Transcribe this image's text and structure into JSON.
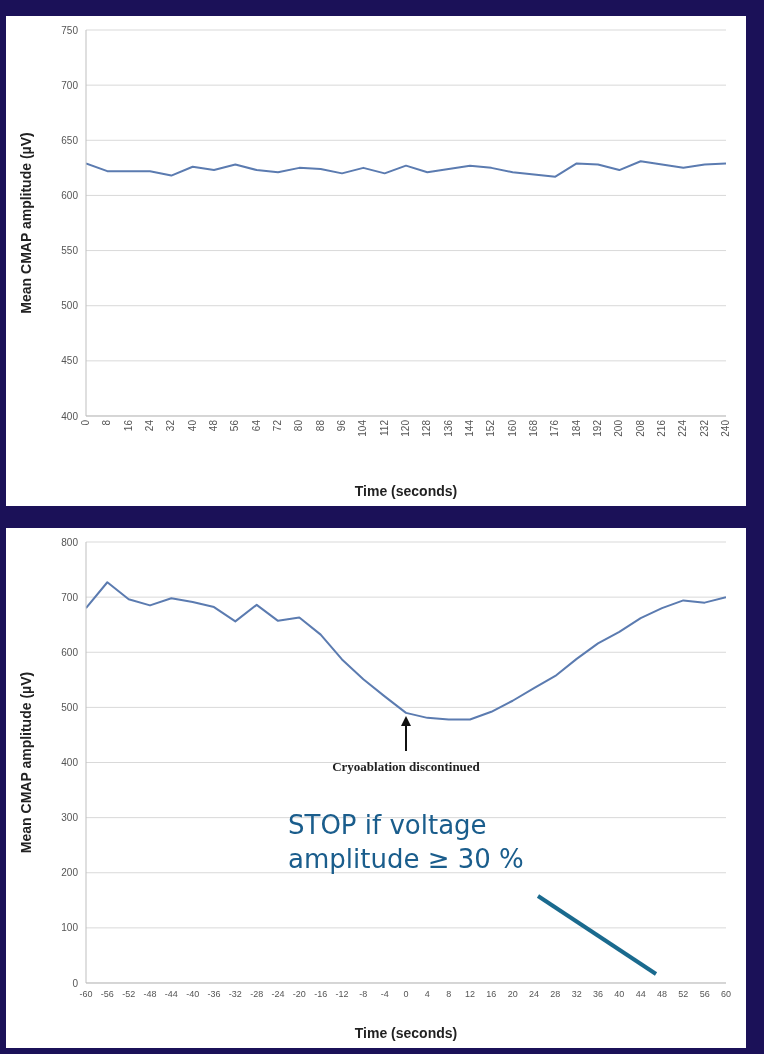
{
  "chart_data": [
    {
      "type": "line",
      "ylabel": "Mean CMAP amplitude (µV)",
      "xlabel": "Time (seconds)",
      "color": "#5b7bb0",
      "grid": "y",
      "marker": "none",
      "line_style": "solid",
      "x": [
        0,
        8,
        16,
        24,
        32,
        40,
        48,
        56,
        64,
        72,
        80,
        88,
        96,
        104,
        112,
        120,
        128,
        136,
        144,
        152,
        160,
        168,
        176,
        184,
        192,
        200,
        208,
        216,
        224,
        232,
        240
      ],
      "values": [
        629,
        622,
        622,
        622,
        618,
        626,
        623,
        628,
        623,
        621,
        625,
        624,
        620,
        625,
        620,
        627,
        621,
        624,
        627,
        625,
        621,
        619,
        617,
        629,
        628,
        623,
        631,
        628,
        625,
        628,
        629
      ],
      "xlim": [
        0,
        240
      ],
      "xticks": [
        0,
        8,
        16,
        24,
        32,
        40,
        48,
        56,
        64,
        72,
        80,
        88,
        96,
        104,
        112,
        120,
        128,
        136,
        144,
        152,
        160,
        168,
        176,
        184,
        192,
        200,
        208,
        216,
        224,
        232,
        240
      ],
      "ylim": [
        400,
        750
      ],
      "yticks": [
        400,
        450,
        500,
        550,
        600,
        650,
        700,
        750
      ]
    },
    {
      "type": "line",
      "ylabel": "Mean CMAP amplitude (µV)",
      "xlabel": "Time (seconds)",
      "color": "#5b7bb0",
      "grid": "y",
      "marker": "none",
      "line_style": "solid",
      "x": [
        -60,
        -56,
        -52,
        -48,
        -44,
        -40,
        -36,
        -32,
        -28,
        -24,
        -20,
        -16,
        -12,
        -8,
        -4,
        0,
        4,
        8,
        12,
        16,
        20,
        24,
        28,
        32,
        36,
        40,
        44,
        48,
        52,
        56,
        60
      ],
      "values": [
        680,
        727,
        696,
        685,
        698,
        691,
        682,
        656,
        686,
        657,
        663,
        632,
        587,
        551,
        520,
        490,
        481,
        478,
        478,
        492,
        512,
        535,
        557,
        588,
        616,
        637,
        662,
        680,
        694,
        690,
        700
      ],
      "xlim": [
        -60,
        60
      ],
      "xticks": [
        -60,
        -56,
        -52,
        -48,
        -44,
        -40,
        -36,
        -32,
        -28,
        -24,
        -20,
        -16,
        -12,
        -8,
        -4,
        0,
        4,
        8,
        12,
        16,
        20,
        24,
        28,
        32,
        36,
        40,
        44,
        48,
        52,
        56,
        60
      ],
      "ylim": [
        0,
        800
      ],
      "yticks": [
        0,
        100,
        200,
        300,
        400,
        500,
        600,
        700,
        800
      ],
      "annotations": [
        {
          "text": "Cryoablation discontinued",
          "x": 0,
          "y": 490
        },
        "STOP if voltage amplitude ≥ 30 %"
      ]
    }
  ]
}
